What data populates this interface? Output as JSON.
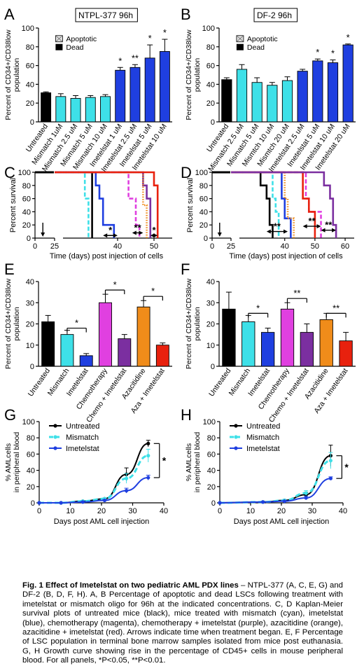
{
  "figure_caption": {
    "title": "Fig. 1 Effect of Imetelstat on two pediatric AML PDX lines",
    "text": "– NTPL-377 (A, C, E, G) and DF-2 (B, D, F, H). A, B Percentage of apoptotic and dead LSCs following treatment with imetelstat or mismatch oligo for 96h at the indicated concentrations. C, D Kaplan-Meier survival plots of untreated mice (black), mice treated with mismatch (cyan), imetelstat (blue), chemotherapy (magenta), chemotherapy + imetelstat (purple), azacitidine (orange), azacitidine + imetelstat (red). Arrows indicate time when treatment began. E, F Percentage of LSC population in terminal bone marrow samples isolated from mice post euthanasia. G, H Growth curve showing rise in the percentage of CD45+ cells in mouse peripheral blood. For all panels, *P<0.05, **P<0.01."
  },
  "colors": {
    "black": "#000000",
    "cyan": "#3ee0e8",
    "blue": "#1f3fe0",
    "magenta": "#e040e0",
    "purple": "#7b2fa0",
    "orange": "#f08c1a",
    "red": "#e8210e"
  },
  "chart_data": [
    {
      "panel": "A",
      "type": "bar",
      "box_title": "NTPL-377 96h",
      "ylabel": "Percent of CD34+/CD38low population",
      "ylim": [
        0,
        100
      ],
      "yticks": [
        "0",
        "20",
        "40",
        "60",
        "80",
        "100"
      ],
      "legend": [
        "Apoptotic",
        "Dead"
      ],
      "categories": [
        "Untreated",
        "Mismatch 1uM",
        "Mismatch 2.5 uM",
        "Mismatch 5 uM",
        "Mismatch 10 uM",
        "Imetelstat 1 uM",
        "Imetelstat 2.5 uM",
        "Imetelstat 5 uM",
        "Imetelstat 10 uM"
      ],
      "values": [
        31,
        27,
        25,
        26,
        27,
        55,
        58,
        68,
        75
      ],
      "errors": [
        1,
        3,
        3,
        2,
        2,
        3,
        3,
        14,
        13
      ],
      "colors": [
        "black",
        "cyan",
        "cyan",
        "cyan",
        "cyan",
        "blue",
        "blue",
        "blue",
        "blue"
      ],
      "sig": [
        "",
        "",
        "",
        "",
        "",
        "*",
        "**",
        "*",
        "*"
      ]
    },
    {
      "panel": "B",
      "type": "bar",
      "box_title": "DF-2 96h",
      "ylabel": "Percent of CD34+/CD38low population",
      "ylim": [
        0,
        100
      ],
      "yticks": [
        "0",
        "20",
        "40",
        "60",
        "80",
        "100"
      ],
      "legend": [
        "Apoptotic",
        "Dead"
      ],
      "categories": [
        "Untreated",
        "Mismatch 2.5 uM",
        "Mismatch 5 uM",
        "Mismtch 10 uM",
        "Mismtch 20 uM",
        "Imetelstat 2.5 uM",
        "Imetelstat 5 uM",
        "Imetelstat 10 uM",
        "Imetelstat 20 uM"
      ],
      "values": [
        45,
        56,
        42,
        39,
        44,
        54,
        65,
        63,
        82
      ],
      "errors": [
        2,
        5,
        5,
        3,
        4,
        2,
        2,
        3,
        1
      ],
      "colors": [
        "black",
        "cyan",
        "cyan",
        "cyan",
        "cyan",
        "blue",
        "blue",
        "blue",
        "blue"
      ],
      "sig": [
        "",
        "",
        "",
        "",
        "",
        "",
        "*",
        "*",
        "*"
      ]
    },
    {
      "panel": "C",
      "type": "line",
      "subtype": "kaplan-meier",
      "ylabel": "Percent survival",
      "xlabel": "Time (days) post injection of cells",
      "xticks": [
        "0",
        "25",
        "40",
        "50"
      ],
      "yticks": [
        "0",
        "20",
        "40",
        "60",
        "80",
        "100"
      ],
      "treatment_start_day": 10,
      "series": [
        {
          "color": "black",
          "dash": false,
          "times": [
            33
          ],
          "surv": [
            0
          ]
        },
        {
          "color": "cyan",
          "dash": true,
          "times": [
            31,
            32
          ],
          "surv": [
            60,
            0
          ]
        },
        {
          "color": "blue",
          "dash": false,
          "times": [
            34,
            35,
            36,
            39
          ],
          "surv": [
            80,
            60,
            20,
            0
          ]
        },
        {
          "color": "magenta",
          "dash": true,
          "times": [
            43,
            45,
            46
          ],
          "surv": [
            60,
            20,
            0
          ]
        },
        {
          "color": "purple",
          "dash": false,
          "times": [
            47,
            48,
            49
          ],
          "surv": [
            80,
            60,
            0
          ]
        },
        {
          "color": "orange",
          "dash": true,
          "dot": true,
          "times": [
            47,
            48
          ],
          "surv": [
            50,
            0
          ]
        },
        {
          "color": "red",
          "dash": false,
          "times": [
            50,
            51
          ],
          "surv": [
            80,
            0
          ]
        }
      ],
      "sig": [
        {
          "label": "*",
          "from": 36,
          "to": 40,
          "y": 4
        },
        {
          "label": "**",
          "from": 44,
          "to": 47,
          "y": 8
        },
        {
          "label": "*",
          "from": 49,
          "to": 51,
          "y": 4
        }
      ]
    },
    {
      "panel": "D",
      "type": "line",
      "subtype": "kaplan-meier",
      "ylabel": "Percent survival",
      "xlabel": "Time (days) post injection of cells",
      "xticks": [
        "0",
        "25",
        "40",
        "50",
        "60"
      ],
      "yticks": [
        "0",
        "20",
        "40",
        "60",
        "80",
        "100"
      ],
      "treatment_start_day": 10,
      "series": [
        {
          "color": "black",
          "dash": false,
          "times": [
            32,
            34,
            35,
            36
          ],
          "surv": [
            80,
            60,
            20,
            0
          ]
        },
        {
          "color": "cyan",
          "dash": true,
          "times": [
            36,
            37,
            38
          ],
          "surv": [
            60,
            40,
            0
          ]
        },
        {
          "color": "blue",
          "dash": false,
          "times": [
            39,
            40,
            42
          ],
          "surv": [
            60,
            30,
            0
          ]
        },
        {
          "color": "orange",
          "dash": true,
          "dot": true,
          "times": [
            40,
            41,
            43
          ],
          "surv": [
            60,
            30,
            0
          ]
        },
        {
          "color": "magenta",
          "dash": true,
          "times": [
            47,
            48,
            52
          ],
          "surv": [
            60,
            40,
            0
          ]
        },
        {
          "color": "red",
          "dash": false,
          "times": [
            46,
            48,
            50
          ],
          "surv": [
            60,
            40,
            0
          ]
        },
        {
          "color": "purple",
          "dash": false,
          "times": [
            53,
            55,
            56,
            57
          ],
          "surv": [
            80,
            60,
            20,
            0
          ]
        }
      ],
      "sig": [
        {
          "label": "**",
          "from": 34,
          "to": 41,
          "y": 10
        },
        {
          "label": "**",
          "from": 46,
          "to": 52,
          "y": 18
        },
        {
          "label": "**",
          "from": 52,
          "to": 57,
          "y": 12
        }
      ]
    },
    {
      "panel": "E",
      "type": "bar",
      "ylabel": "Percent of CD34+/CD38low population",
      "ylim": [
        0,
        40
      ],
      "yticks": [
        "0",
        "10",
        "20",
        "30",
        "40"
      ],
      "categories": [
        "Untreated",
        "Mismatch",
        "Imetelstat",
        "Chemotherapy",
        "Chemo + Imetelstat",
        "Azacitidine",
        "Aza + Imetelstat"
      ],
      "values": [
        21,
        15,
        5,
        30,
        13,
        28,
        10
      ],
      "errors": [
        3,
        2,
        1,
        4,
        2,
        3,
        1
      ],
      "colors": [
        "black",
        "cyan",
        "blue",
        "magenta",
        "purple",
        "orange",
        "red"
      ],
      "brackets": [
        {
          "from": 1,
          "to": 2,
          "y": 18,
          "label": "*"
        },
        {
          "from": 3,
          "to": 4,
          "y": 36,
          "label": "*"
        },
        {
          "from": 5,
          "to": 6,
          "y": 33,
          "label": "*"
        }
      ]
    },
    {
      "panel": "F",
      "type": "bar",
      "ylabel": "Percent of CD34+/CD38low population",
      "ylim": [
        0,
        40
      ],
      "yticks": [
        "0",
        "10",
        "20",
        "30",
        "40"
      ],
      "categories": [
        "Untreated",
        "Mismatch",
        "Imetelstat",
        "Chemotherapy",
        "Chemo + Imetelstat",
        "Azacitidine",
        "Aza + Imetelstat"
      ],
      "values": [
        27,
        21,
        16,
        27,
        16,
        22,
        12
      ],
      "errors": [
        8,
        3,
        2,
        3,
        4,
        3,
        4
      ],
      "colors": [
        "black",
        "cyan",
        "blue",
        "magenta",
        "purple",
        "orange",
        "red"
      ],
      "brackets": [
        {
          "from": 1,
          "to": 2,
          "y": 25,
          "label": "*"
        },
        {
          "from": 3,
          "to": 4,
          "y": 32,
          "label": "**"
        },
        {
          "from": 5,
          "to": 6,
          "y": 25,
          "label": "**"
        }
      ]
    },
    {
      "panel": "G",
      "type": "line",
      "ylabel": "% AMLcells in peripheral blood",
      "xlabel": "Days post AML cell injection",
      "xlim": [
        0,
        40
      ],
      "ylim": [
        0,
        100
      ],
      "xticks": [
        "0",
        "10",
        "20",
        "30",
        "40"
      ],
      "yticks": [
        "0",
        "20",
        "40",
        "60",
        "80",
        "100"
      ],
      "series": [
        {
          "name": "Untreated",
          "color": "black",
          "dash": false,
          "x": [
            0,
            7,
            14,
            21,
            28,
            35
          ],
          "y": [
            0,
            0,
            2,
            5,
            35,
            73
          ],
          "err": [
            0,
            0,
            1,
            1,
            8,
            4
          ]
        },
        {
          "name": "Mismatch",
          "color": "cyan",
          "dash": true,
          "x": [
            0,
            7,
            14,
            21,
            28,
            35
          ],
          "y": [
            0,
            0,
            2,
            5,
            30,
            58
          ],
          "err": [
            0,
            0,
            1,
            1,
            6,
            8
          ]
        },
        {
          "name": "Imetelstat",
          "color": "blue",
          "dash": false,
          "x": [
            0,
            7,
            14,
            21,
            28,
            35
          ],
          "y": [
            0,
            0,
            1,
            3,
            15,
            31
          ],
          "err": [
            0,
            0,
            1,
            1,
            3,
            3
          ]
        }
      ],
      "sig": "*"
    },
    {
      "panel": "H",
      "type": "line",
      "ylabel": "% AMLcells in peripheral blood",
      "xlabel": "Days post AML cell injection",
      "xlim": [
        0,
        40
      ],
      "ylim": [
        0,
        100
      ],
      "xticks": [
        "0",
        "10",
        "20",
        "30",
        "40"
      ],
      "yticks": [
        "0",
        "20",
        "40",
        "60",
        "80",
        "100"
      ],
      "series": [
        {
          "name": "Untreated",
          "color": "black",
          "dash": false,
          "x": [
            0,
            14,
            21,
            28,
            36
          ],
          "y": [
            0,
            1,
            3,
            10,
            58
          ],
          "err": [
            0,
            1,
            1,
            3,
            13
          ]
        },
        {
          "name": "Mismatch",
          "color": "cyan",
          "dash": true,
          "x": [
            0,
            14,
            21,
            28,
            36
          ],
          "y": [
            0,
            1,
            3,
            12,
            52
          ],
          "err": [
            0,
            1,
            1,
            3,
            10
          ]
        },
        {
          "name": "Imetelstat",
          "color": "blue",
          "dash": false,
          "x": [
            0,
            14,
            21,
            28,
            36
          ],
          "y": [
            0,
            1,
            2,
            6,
            30
          ],
          "err": [
            0,
            0,
            1,
            2,
            2
          ]
        }
      ],
      "sig": "*"
    }
  ]
}
